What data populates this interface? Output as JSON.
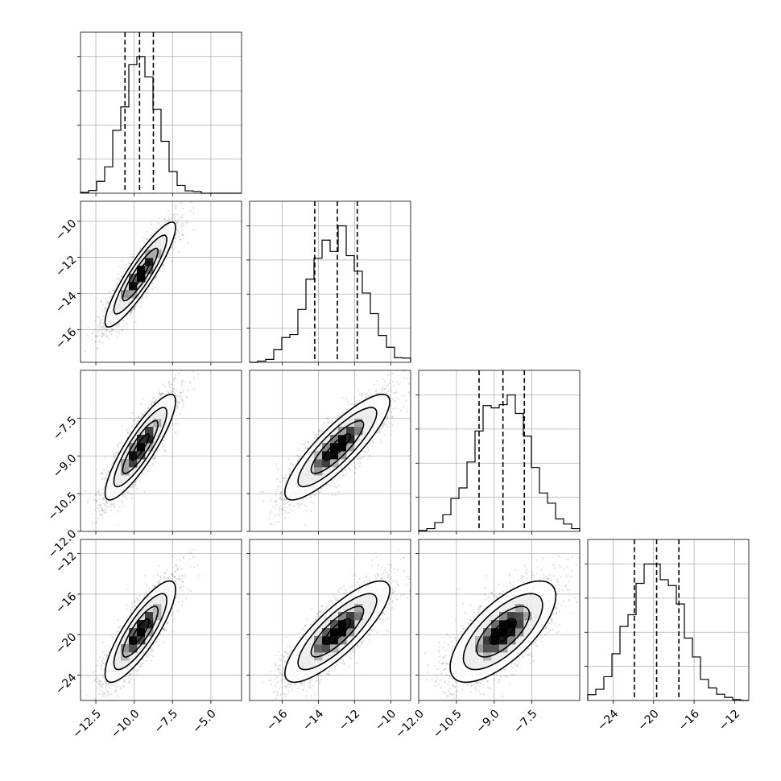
{
  "chart_data": {
    "type": "corner",
    "n_params": 4,
    "grid": true,
    "params": [
      {
        "mean": -9.6,
        "sd": 1.15,
        "range": [
          -13.5,
          -3.0
        ],
        "ticks": [
          -12.5,
          -10.0,
          -7.5,
          -5.0
        ],
        "tick_labels": [
          "−12.5",
          "−10.0",
          "−7.5",
          "−5.0"
        ],
        "quantiles": [
          -10.6,
          -9.65,
          -8.75
        ]
      },
      {
        "mean": -12.95,
        "sd": 1.45,
        "range": [
          -17.8,
          -8.9
        ],
        "ticks": [
          -16,
          -14,
          -12,
          -10
        ],
        "tick_labels": [
          "−16",
          "−14",
          "−12",
          "−10"
        ],
        "quantiles": [
          -14.2,
          -12.95,
          -11.85
        ]
      },
      {
        "mean": -8.65,
        "sd": 1.05,
        "range": [
          -12.0,
          -5.6
        ],
        "ticks": [
          -12.0,
          -10.5,
          -9.0,
          -7.5
        ],
        "tick_labels": [
          "−12.0",
          "−10.5",
          "−9.0",
          "−7.5"
        ],
        "quantiles": [
          -9.6,
          -8.65,
          -7.8
        ]
      },
      {
        "mean": -19.7,
        "sd": 2.5,
        "range": [
          -26.5,
          -10.6
        ],
        "ticks": [
          -24,
          -20,
          -16,
          -12
        ],
        "tick_labels": [
          "−24",
          "−20",
          "−16",
          "−12"
        ],
        "quantiles": [
          -21.9,
          -19.7,
          -17.5
        ]
      }
    ],
    "correlations": [
      [
        1.0,
        0.9,
        0.87,
        0.83
      ],
      [
        0.9,
        1.0,
        0.86,
        0.82
      ],
      [
        0.87,
        0.86,
        1.0,
        0.7
      ],
      [
        0.83,
        0.82,
        0.7,
        1.0
      ]
    ],
    "histogram": {
      "bins": 20,
      "ylim_max": 1.18
    },
    "contour_levels_sigma": [
      0.5,
      1.0,
      1.5,
      2.0
    ],
    "n_samples": 2500,
    "colors": {
      "ink": "#000000",
      "grid": "#b0b0b0",
      "background": "#ffffff"
    }
  }
}
